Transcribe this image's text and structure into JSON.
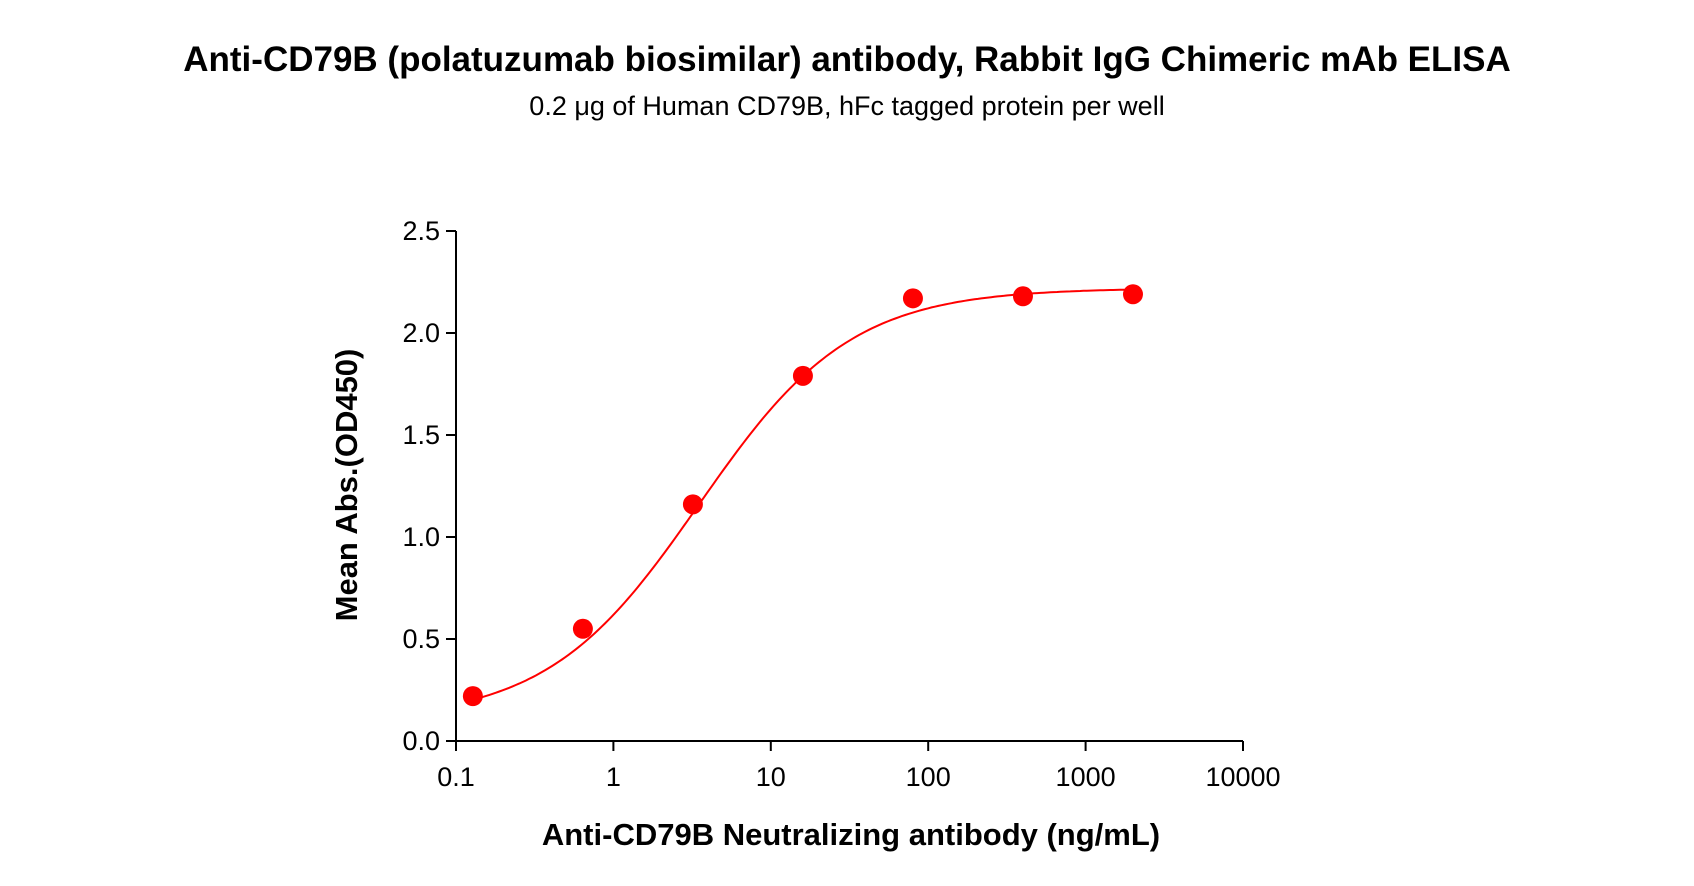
{
  "chart_data": {
    "type": "scatter",
    "title": "Anti-CD79B (polatuzumab biosimilar) antibody, Rabbit IgG Chimeric mAb ELISA",
    "subtitle": "0.2 μg of Human CD79B, hFc tagged protein per well",
    "xlabel": "Anti-CD79B Neutralizing antibody (ng/mL)",
    "ylabel": "Mean Abs.(OD450)",
    "x_scale": "log",
    "xlim": [
      0.1,
      10000
    ],
    "ylim": [
      0,
      2.5
    ],
    "x_ticks": [
      "0.1",
      "1",
      "10",
      "100",
      "1000",
      "10000"
    ],
    "y_ticks": [
      "0.0",
      "0.5",
      "1.0",
      "1.5",
      "2.0",
      "2.5"
    ],
    "grid": false,
    "color": "#ff0000",
    "points": {
      "x": [
        0.128,
        0.64,
        3.2,
        16,
        80,
        400,
        2000
      ],
      "y": [
        0.22,
        0.55,
        1.16,
        1.79,
        2.17,
        2.18,
        2.19
      ]
    },
    "fit_curve": {
      "model": "4PL",
      "bottom": 0.1,
      "top": 2.22,
      "ec50": 3.5,
      "hill": 0.9
    }
  }
}
